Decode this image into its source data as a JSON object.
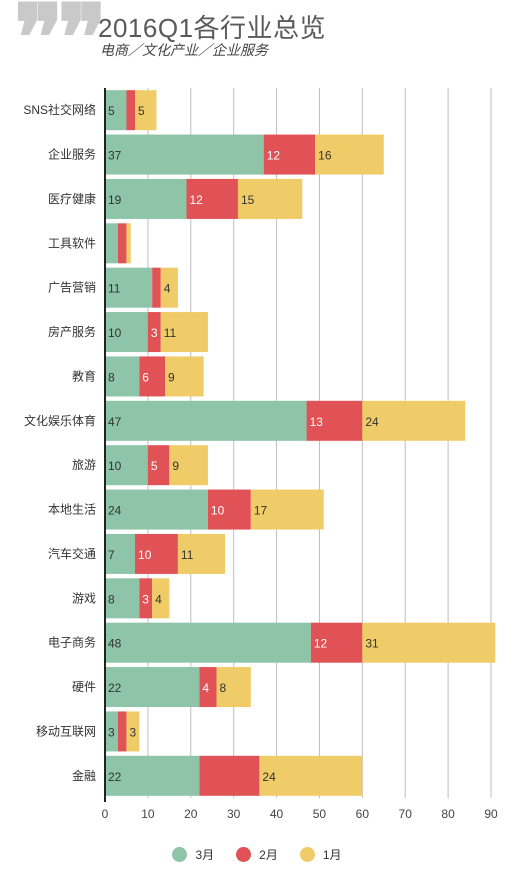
{
  "header": {
    "quote_icon": "quote-mark-icon",
    "title": "2016Q1各行业总览",
    "subtitle": "电商／文化产业／企业服务"
  },
  "chart_data": {
    "type": "bar",
    "orientation": "horizontal",
    "stacked": true,
    "title": "2016Q1各行业总览",
    "subtitle": "电商／文化产业／企业服务",
    "categories": [
      "SNS社交网络",
      "企业服务",
      "医疗健康",
      "工具软件",
      "广告营销",
      "房产服务",
      "教育",
      "文化娱乐体育",
      "旅游",
      "本地生活",
      "汽车交通",
      "游戏",
      "电子商务",
      "硬件",
      "移动互联网",
      "金融"
    ],
    "series": [
      {
        "name": "3月",
        "color": "#8ec4a8",
        "values": [
          5,
          37,
          19,
          3,
          11,
          10,
          8,
          47,
          10,
          24,
          7,
          8,
          48,
          22,
          3,
          22
        ],
        "labels": [
          "5",
          "37",
          "19",
          "",
          "11",
          "10",
          "8",
          "47",
          "10",
          "24",
          "7",
          "8",
          "48",
          "22",
          "3",
          "22"
        ]
      },
      {
        "name": "2月",
        "color": "#e05256",
        "values": [
          2,
          12,
          12,
          2,
          2,
          3,
          6,
          13,
          5,
          10,
          10,
          3,
          12,
          4,
          2,
          14
        ],
        "labels": [
          "",
          "12",
          "12",
          "",
          "",
          "3",
          "6",
          "13",
          "5",
          "10",
          "10",
          "3",
          "12",
          "4",
          "",
          ""
        ]
      },
      {
        "name": "1月",
        "color": "#f0cc68",
        "values": [
          5,
          16,
          15,
          1,
          4,
          11,
          9,
          24,
          9,
          17,
          11,
          4,
          31,
          8,
          3,
          24
        ],
        "labels": [
          "5",
          "16",
          "15",
          "",
          "4",
          "11",
          "9",
          "24",
          "9",
          "17",
          "11",
          "4",
          "31",
          "8",
          "3",
          "24"
        ]
      }
    ],
    "xlim": [
      0,
      90
    ],
    "xticks": [
      "0",
      "10",
      "20",
      "30",
      "40",
      "50",
      "60",
      "70",
      "80",
      "90"
    ],
    "grid": true,
    "legend_position": "bottom"
  }
}
